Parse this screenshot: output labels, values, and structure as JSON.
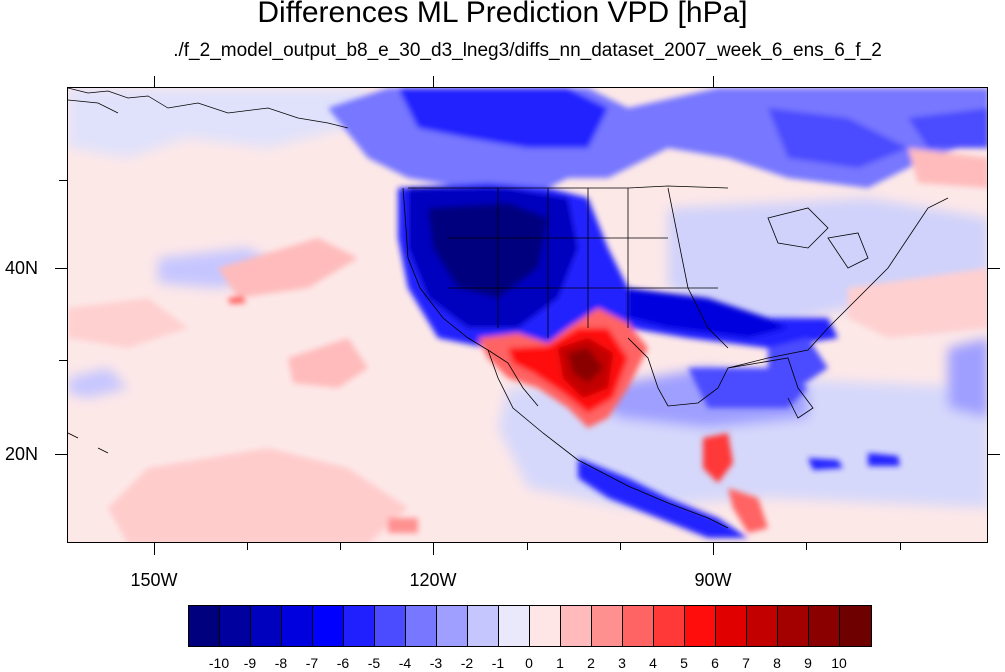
{
  "title": "Differences ML Prediction VPD [hPa]",
  "subtitle": "./f_2_model_output_b8_e_30_d3_lneg3/diffs_nn_dataset_2007_week_6_ens_6_f_2",
  "map": {
    "lat_labels": [
      "40N",
      "20N"
    ],
    "lon_labels": [
      "150W",
      "120W",
      "90W"
    ]
  },
  "colorbar": {
    "labels": [
      "-10",
      "-9",
      "-8",
      "-7",
      "-6",
      "-5",
      "-4",
      "-3",
      "-2",
      "-1",
      "0",
      "1",
      "2",
      "3",
      "4",
      "5",
      "6",
      "7",
      "8",
      "9",
      "10"
    ],
    "colors": [
      "#00007f",
      "#00009f",
      "#0000bf",
      "#0000df",
      "#0000ff",
      "#2020ff",
      "#4b4bff",
      "#7777ff",
      "#9f9fff",
      "#c6c6ff",
      "#e9e9fb",
      "#ffe6e6",
      "#ffbbbb",
      "#ff9090",
      "#ff6464",
      "#ff3838",
      "#ff0d0d",
      "#e00000",
      "#c20000",
      "#a30000",
      "#8a0000",
      "#6e0000"
    ]
  }
}
